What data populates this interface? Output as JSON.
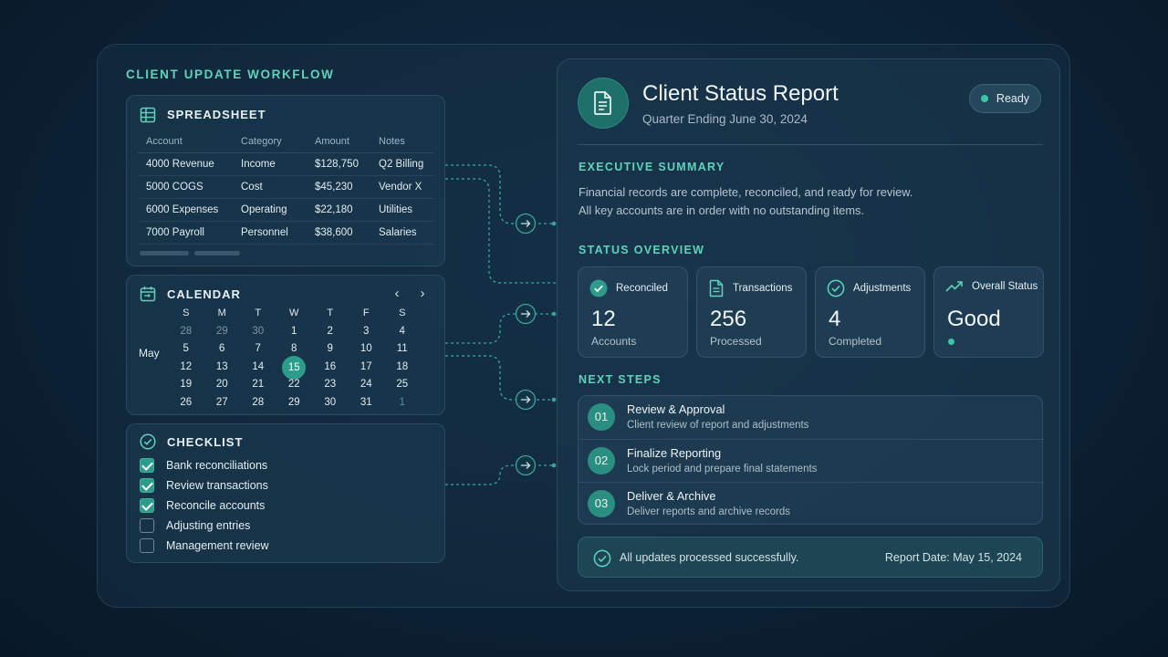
{
  "workflow": {
    "title": "CLIENT UPDATE WORKFLOW"
  },
  "spreadsheet": {
    "title": "SPREADSHEET",
    "icon": "table-icon",
    "columns": [
      "Account",
      "Category",
      "Amount",
      "Notes"
    ],
    "rows": [
      [
        "4000 Revenue",
        "Income",
        "$128,750",
        "Q2 Billing"
      ],
      [
        "5000 COGS",
        "Cost",
        "$45,230",
        "Vendor X"
      ],
      [
        "6000 Expenses",
        "Operating",
        "$22,180",
        "Utilities"
      ],
      [
        "7000 Payroll",
        "Personnel",
        "$38,600",
        "Salaries"
      ]
    ]
  },
  "calendar": {
    "title": "CALENDAR",
    "icon": "calendar-icon",
    "month": "May",
    "weekdays": [
      "S",
      "M",
      "T",
      "W",
      "T",
      "F",
      "S"
    ],
    "weeks": [
      [
        "28",
        "29",
        "30",
        "1",
        "2",
        "3",
        "4"
      ],
      [
        "5",
        "6",
        "7",
        "8",
        "9",
        "10",
        "11"
      ],
      [
        "12",
        "13",
        "14",
        "15",
        "16",
        "17",
        "18"
      ],
      [
        "19",
        "20",
        "21",
        "22",
        "23",
        "24",
        "25"
      ],
      [
        "26",
        "27",
        "28",
        "29",
        "30",
        "31",
        "1"
      ]
    ],
    "selected_day": "15"
  },
  "checklist": {
    "title": "CHECKLIST",
    "icon": "check-circle-icon",
    "items": [
      {
        "label": "Bank reconciliations",
        "checked": true
      },
      {
        "label": "Review transactions",
        "checked": true
      },
      {
        "label": "Reconcile accounts",
        "checked": true
      },
      {
        "label": "Adjusting entries",
        "checked": false
      },
      {
        "label": "Management review",
        "checked": false
      }
    ]
  },
  "report": {
    "icon": "document-icon",
    "title": "Client Status Report",
    "subtitle": "Quarter Ending June 30, 2024",
    "status": "Ready",
    "summary_label": "EXECUTIVE SUMMARY",
    "summary_line1": "Financial records are complete, reconciled, and ready for review.",
    "summary_line2": "All key accounts are in order with no outstanding items.",
    "overview_label": "STATUS OVERVIEW",
    "stats": [
      {
        "label": "Reconciled",
        "value": "12",
        "caption": "Accounts",
        "icon": "check-circle-icon"
      },
      {
        "label": "Transactions",
        "value": "256",
        "caption": "Processed",
        "icon": "document-icon"
      },
      {
        "label": "Adjustments",
        "value": "4",
        "caption": "Completed",
        "icon": "check-circle-outline-icon"
      },
      {
        "label": "Overall Status",
        "value": "Good",
        "caption": "",
        "icon": "trend-up-icon"
      }
    ],
    "next_label": "NEXT STEPS",
    "steps": [
      {
        "num": "01",
        "title": "Review & Approval",
        "desc": "Client review of report and adjustments"
      },
      {
        "num": "02",
        "title": "Finalize Reporting",
        "desc": "Lock period and prepare final statements"
      },
      {
        "num": "03",
        "title": "Deliver & Archive",
        "desc": "Deliver reports and archive records"
      }
    ],
    "footer_message": "All updates processed successfully.",
    "footer_date": "Report Date: May 15, 2024"
  },
  "colors": {
    "accent": "#5fd2bc",
    "teal": "#2e9c8b",
    "background": "#0c2236"
  }
}
